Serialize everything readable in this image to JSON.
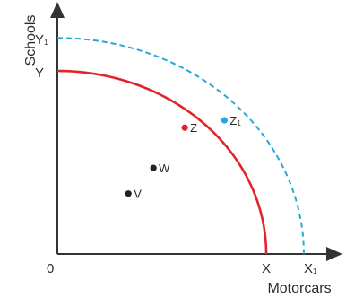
{
  "chart_data": {
    "type": "line",
    "title": "",
    "xlabel": "Motorcars",
    "ylabel": "Schools",
    "origin_label": "0",
    "grid": false,
    "legend": "none",
    "series": [
      {
        "id": "ppc-original",
        "style": "solid",
        "color": "#e0242b",
        "x_intercept": 1.0,
        "y_intercept": 1.0,
        "x_label": "X",
        "y_label": "Y"
      },
      {
        "id": "ppc-shifted",
        "style": "dashed",
        "color": "#2aa7d6",
        "x_intercept": 1.18,
        "y_intercept": 1.18,
        "x_label": "X",
        "x_label_sub": "1",
        "y_label": "Y",
        "y_label_sub": "1"
      }
    ],
    "points": [
      {
        "label": "Z",
        "sub": "",
        "x": 0.61,
        "y": 0.69,
        "color": "#e0242b",
        "label_side": "right"
      },
      {
        "label": "Z",
        "sub": "1",
        "x": 0.8,
        "y": 0.73,
        "color": "#2aa7d6",
        "label_side": "right"
      },
      {
        "label": "W",
        "sub": "",
        "x": 0.46,
        "y": 0.47,
        "color": "#222222",
        "label_side": "right"
      },
      {
        "label": "V",
        "sub": "",
        "x": 0.34,
        "y": 0.33,
        "color": "#222222",
        "label_side": "right"
      }
    ]
  }
}
